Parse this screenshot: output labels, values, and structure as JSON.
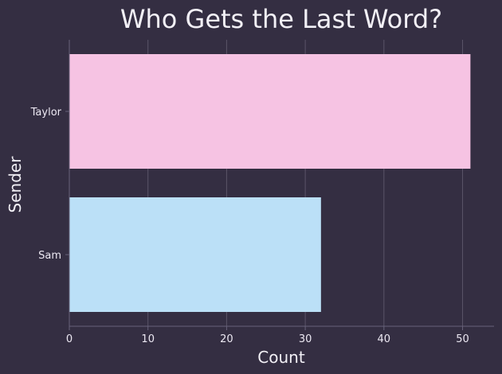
{
  "chart_data": {
    "type": "bar",
    "orientation": "horizontal",
    "title": "Who Gets the Last Word?",
    "xlabel": "Count",
    "ylabel": "Sender",
    "categories": [
      "Taylor",
      "Sam"
    ],
    "values": [
      51,
      32
    ],
    "xlim": [
      0,
      54
    ],
    "xticks": [
      0,
      10,
      20,
      30,
      40,
      50
    ],
    "grid": "vertical",
    "legend": "none",
    "colors": {
      "background": "#342e42",
      "Taylor": "#f6c3e3",
      "Sam": "#bbe0f7",
      "text": "#f2f0f6",
      "grid": "#5a5468",
      "axis": "#67627a"
    }
  }
}
